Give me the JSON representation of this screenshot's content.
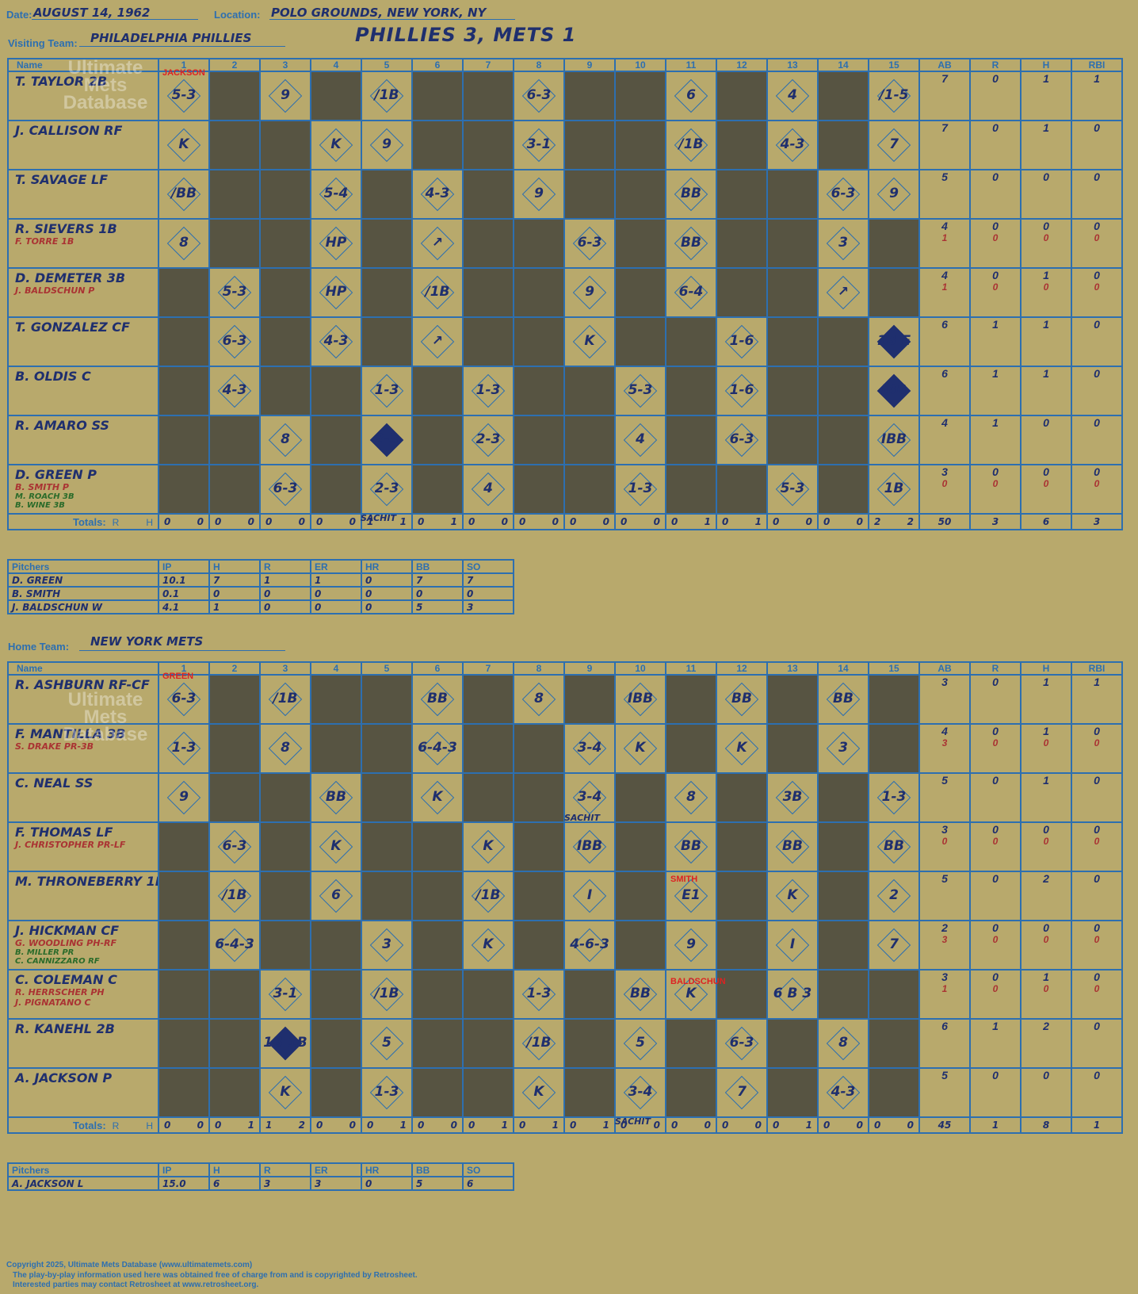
{
  "header": {
    "date_label": "Date:",
    "date": "AUGUST 14, 1962",
    "location_label": "Location:",
    "location": "POLO GROUNDS, NEW YORK, NY",
    "headline": "PHILLIES 3, METS 1"
  },
  "visiting": {
    "label": "Visiting Team:",
    "name": "PHILADELPHIA PHILLIES"
  },
  "home": {
    "label": "Home Team:",
    "name": "NEW YORK METS"
  },
  "columns": {
    "name": "Name",
    "innings": [
      "1",
      "2",
      "3",
      "4",
      "5",
      "6",
      "7",
      "8",
      "9",
      "10",
      "11",
      "12",
      "13",
      "14",
      "15"
    ],
    "stats": [
      "AB",
      "R",
      "H",
      "RBI"
    ],
    "totals": "Totals:",
    "r": "R",
    "h": "H"
  },
  "v_rows": [
    {
      "name": "T. TAYLOR 2B",
      "subs": [],
      "stats": [
        "7",
        "0",
        "1",
        "1"
      ],
      "ex": [],
      "cells": [
        "L:5-3",
        "D",
        "L:9",
        "D",
        "L:/1B",
        "D",
        "D",
        "L:6-3",
        "D",
        "D",
        "L:6",
        "D",
        "L:4",
        "D",
        "L:/1-5"
      ]
    },
    {
      "name": "J. CALLISON RF",
      "subs": [],
      "stats": [
        "7",
        "0",
        "1",
        "0"
      ],
      "ex": [],
      "cells": [
        "L:K",
        "D",
        "D",
        "L:K",
        "L:9",
        "D",
        "D",
        "L:3-1",
        "D",
        "D",
        "L:/1B",
        "D",
        "L:4-3",
        "D",
        "L:7"
      ]
    },
    {
      "name": "T. SAVAGE LF",
      "subs": [],
      "stats": [
        "5",
        "0",
        "0",
        "0"
      ],
      "ex": [],
      "cells": [
        "L:/BB",
        "D",
        "D",
        "L:5-4",
        "D",
        "L:4-3",
        "D",
        "L:9",
        "D",
        "D",
        "L:BB",
        "D",
        "D",
        "L:6-3",
        "L:9"
      ]
    },
    {
      "name": "R. SIEVERS 1B",
      "subs": [
        "F. TORRE 1B"
      ],
      "stats": [
        "4",
        "0",
        "0",
        "0"
      ],
      "ex": [
        "1",
        "0",
        "0",
        "0"
      ],
      "cells": [
        "L:8",
        "D",
        "D",
        "L:HP",
        "D",
        "L:↗",
        "D",
        "D",
        "L:6-3",
        "D",
        "L:BB",
        "D",
        "D",
        "L:3",
        "D"
      ]
    },
    {
      "name": "D. DEMETER 3B",
      "subs": [
        "J. BALDSCHUN P"
      ],
      "stats": [
        "4",
        "0",
        "1",
        "0"
      ],
      "ex": [
        "1",
        "0",
        "0",
        "0"
      ],
      "cells": [
        "D",
        "L:5-3",
        "D",
        "L:HP",
        "D",
        "L:/1B",
        "D",
        "D",
        "L:9",
        "D",
        "L:6-4",
        "D",
        "D",
        "L:↗",
        "D"
      ]
    },
    {
      "name": "T. GONZALEZ CF",
      "subs": [],
      "stats": [
        "6",
        "1",
        "1",
        "0"
      ],
      "ex": [],
      "cells": [
        "D",
        "L:6-3",
        "D",
        "L:4-3",
        "D",
        "L:↗",
        "D",
        "D",
        "L:K",
        "D",
        "D",
        "L:1-6",
        "D",
        "D",
        "S:1B E"
      ]
    },
    {
      "name": "B. OLDIS C",
      "subs": [],
      "stats": [
        "6",
        "1",
        "1",
        "0"
      ],
      "ex": [],
      "cells": [
        "D",
        "L:4-3",
        "D",
        "D",
        "L:1-3",
        "D",
        "L:1-3",
        "D",
        "D",
        "L:5-3",
        "D",
        "L:1-6",
        "D",
        "D",
        "S:IBB"
      ]
    },
    {
      "name": "R. AMARO SS",
      "subs": [],
      "stats": [
        "4",
        "1",
        "0",
        "0"
      ],
      "ex": [],
      "cells": [
        "D",
        "D",
        "L:8",
        "D",
        "S:2-3",
        "D",
        "L:2-3",
        "D",
        "D",
        "L:4",
        "D",
        "L:6-3",
        "D",
        "D",
        "L:IBB"
      ]
    },
    {
      "name": "D. GREEN P",
      "subs": [
        "B. SMITH P",
        "M. ROACH 3B",
        "B. WINE 3B"
      ],
      "stats": [
        "3",
        "0",
        "0",
        "0"
      ],
      "ex": [
        "0",
        "0",
        "0",
        "0"
      ],
      "cells": [
        "D",
        "D",
        "L:6-3",
        "D",
        "L:2-3",
        "D",
        "L:4",
        "D",
        "D",
        "L:1-3",
        "D",
        "D",
        "L:5-3",
        "D",
        "L:1B"
      ]
    }
  ],
  "v_totals": {
    "innings": [
      [
        "0",
        "0"
      ],
      [
        "0",
        "0"
      ],
      [
        "0",
        "0"
      ],
      [
        "0",
        "0"
      ],
      [
        "1",
        "1"
      ],
      [
        "0",
        "1"
      ],
      [
        "0",
        "0"
      ],
      [
        "0",
        "0"
      ],
      [
        "0",
        "0"
      ],
      [
        "0",
        "0"
      ],
      [
        "0",
        "1"
      ],
      [
        "0",
        "1"
      ],
      [
        "0",
        "0"
      ],
      [
        "0",
        "0"
      ],
      [
        "2",
        "2"
      ]
    ],
    "stats": [
      "50",
      "3",
      "6",
      "3"
    ]
  },
  "v_pitchers": {
    "head": [
      "Pitchers",
      "IP",
      "H",
      "R",
      "ER",
      "HR",
      "BB",
      "SO"
    ],
    "rows": [
      [
        "D. GREEN",
        "10.1",
        "7",
        "1",
        "1",
        "0",
        "7",
        "7"
      ],
      [
        "B. SMITH",
        "0.1",
        "0",
        "0",
        "0",
        "0",
        "0",
        "0"
      ],
      [
        "J. BALDSCHUN  W",
        "4.1",
        "1",
        "0",
        "0",
        "0",
        "5",
        "3"
      ]
    ]
  },
  "h_rows": [
    {
      "name": "R. ASHBURN RF-CF",
      "subs": [],
      "stats": [
        "3",
        "0",
        "1",
        "1"
      ],
      "ex": [],
      "cells": [
        "L:6-3",
        "D",
        "L:/1B",
        "D",
        "D",
        "L:BB",
        "D",
        "L:8",
        "D",
        "L:IBB",
        "D",
        "L:BB",
        "D",
        "L:BB",
        "D"
      ]
    },
    {
      "name": "F. MANTILLA 3B",
      "subs": [
        "S. DRAKE PR-3B"
      ],
      "stats": [
        "4",
        "0",
        "1",
        "0"
      ],
      "ex": [
        "3",
        "0",
        "0",
        "0"
      ],
      "cells": [
        "L:1-3",
        "D",
        "L:8",
        "D",
        "D",
        "L:6-4-3",
        "D",
        "D",
        "L:3-4",
        "L:K",
        "D",
        "L:K",
        "D",
        "L:3",
        "D"
      ]
    },
    {
      "name": "C. NEAL SS",
      "subs": [],
      "stats": [
        "5",
        "0",
        "1",
        "0"
      ],
      "ex": [],
      "cells": [
        "L:9",
        "D",
        "D",
        "L:BB",
        "D",
        "L:K",
        "D",
        "D",
        "L:3-4",
        "D",
        "L:8",
        "D",
        "L:3B",
        "D",
        "L:1-3"
      ]
    },
    {
      "name": "F. THOMAS LF",
      "subs": [
        "J. CHRISTOPHER PR-LF"
      ],
      "stats": [
        "3",
        "0",
        "0",
        "0"
      ],
      "ex": [
        "0",
        "0",
        "0",
        "0"
      ],
      "cells": [
        "D",
        "L:6-3",
        "D",
        "L:K",
        "D",
        "D",
        "L:K",
        "D",
        "L:IBB",
        "D",
        "L:BB",
        "D",
        "L:BB",
        "D",
        "L:BB"
      ]
    },
    {
      "name": "M. THRONEBERRY 1B",
      "subs": [],
      "stats": [
        "5",
        "0",
        "2",
        "0"
      ],
      "ex": [],
      "cells": [
        "D",
        "L:/1B",
        "D",
        "L:6",
        "D",
        "D",
        "L:/1B",
        "D",
        "L:I",
        "D",
        "L:E1",
        "D",
        "L:K",
        "D",
        "L:2"
      ]
    },
    {
      "name": "J. HICKMAN CF",
      "subs": [
        "G. WOODLING PH-RF",
        "B. MILLER PR",
        "C. CANNIZZARO RF"
      ],
      "stats": [
        "2",
        "0",
        "0",
        "0"
      ],
      "ex": [
        "3",
        "0",
        "0",
        "0"
      ],
      "cells": [
        "D",
        "L:6-4-3",
        "D",
        "D",
        "L:3",
        "D",
        "L:K",
        "D",
        "L:4-6-3",
        "D",
        "L:9",
        "D",
        "L:I",
        "D",
        "L:7"
      ]
    },
    {
      "name": "C. COLEMAN C",
      "subs": [
        "R. HERRSCHER PH",
        "J. PIGNATANO C"
      ],
      "stats": [
        "3",
        "0",
        "1",
        "0"
      ],
      "ex": [
        "1",
        "0",
        "0",
        "0"
      ],
      "cells": [
        "D",
        "D",
        "L:3-1",
        "D",
        "L:/1B",
        "D",
        "D",
        "L:1-3",
        "D",
        "L:BB",
        "L:K",
        "D",
        "L:6 B 3",
        "D",
        "D"
      ]
    },
    {
      "name": "R. KANEHL 2B",
      "subs": [],
      "stats": [
        "6",
        "1",
        "2",
        "0"
      ],
      "ex": [],
      "cells": [
        "D",
        "D",
        "S:1B 1B",
        "D",
        "L:5",
        "D",
        "D",
        "L:/1B",
        "D",
        "L:5",
        "D",
        "L:6-3",
        "D",
        "L:8",
        "D"
      ]
    },
    {
      "name": "A. JACKSON P",
      "subs": [],
      "stats": [
        "5",
        "0",
        "0",
        "0"
      ],
      "ex": [],
      "cells": [
        "D",
        "D",
        "L:K",
        "D",
        "L:1-3",
        "D",
        "D",
        "L:K",
        "D",
        "L:3-4",
        "D",
        "L:7",
        "D",
        "L:4-3",
        "D"
      ]
    }
  ],
  "h_totals": {
    "innings": [
      [
        "0",
        "0"
      ],
      [
        "0",
        "1"
      ],
      [
        "1",
        "2"
      ],
      [
        "0",
        "0"
      ],
      [
        "0",
        "1"
      ],
      [
        "0",
        "0"
      ],
      [
        "0",
        "1"
      ],
      [
        "0",
        "1"
      ],
      [
        "0",
        "1"
      ],
      [
        "0",
        "0"
      ],
      [
        "0",
        "0"
      ],
      [
        "0",
        "0"
      ],
      [
        "0",
        "1"
      ],
      [
        "0",
        "0"
      ],
      [
        "0",
        "0"
      ]
    ],
    "stats": [
      "45",
      "1",
      "8",
      "1"
    ]
  },
  "h_pitchers": {
    "head": [
      "Pitchers",
      "IP",
      "H",
      "R",
      "ER",
      "HR",
      "BB",
      "SO"
    ],
    "rows": [
      [
        "A. JACKSON  L",
        "15.0",
        "6",
        "3",
        "3",
        "0",
        "5",
        "6"
      ]
    ]
  },
  "notes": {
    "jackson": "JACKSON",
    "green": "GREEN",
    "sachit": "SACHIT",
    "smith": "SMITH",
    "baldschun": "BALDSCHUN"
  },
  "watermark": "Ultimate Mets Database",
  "footer": {
    "copyright": "Copyright 2025, Ultimate Mets Database (www.ultimatemets.com)",
    "line1": "The play-by-play information used here was obtained free of charge from and is copyrighted by Retrosheet.",
    "line2": "Interested parties may contact Retrosheet at www.retrosheet.org."
  }
}
